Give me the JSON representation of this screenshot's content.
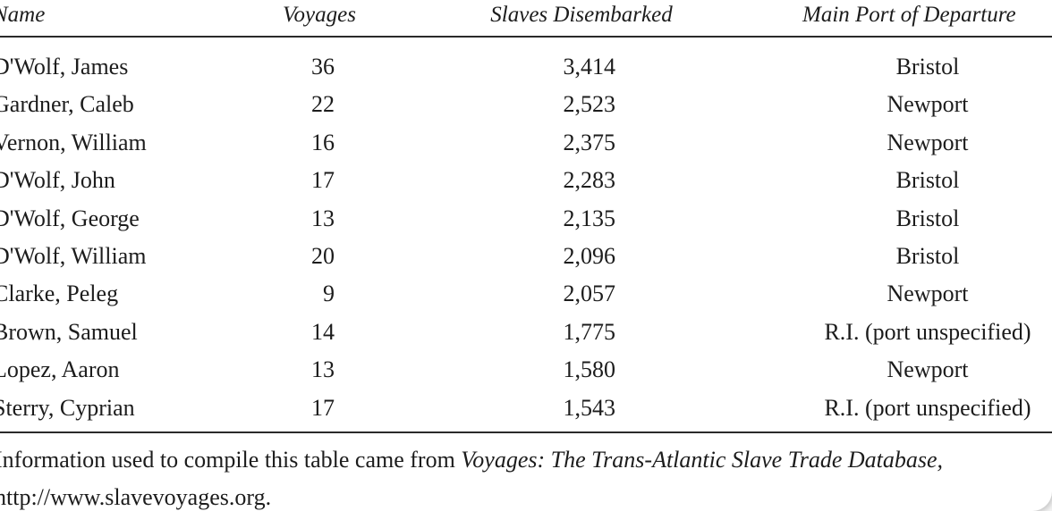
{
  "table": {
    "headers": {
      "name": "Name",
      "voyages": "Voyages",
      "slaves": "Slaves Disembarked",
      "port": "Main Port of Departure"
    },
    "rows": [
      {
        "name": "D'Wolf, James",
        "voyages": "36",
        "slaves": "3,414",
        "port": "Bristol"
      },
      {
        "name": "Gardner, Caleb",
        "voyages": "22",
        "slaves": "2,523",
        "port": "Newport"
      },
      {
        "name": "Vernon, William",
        "voyages": "16",
        "slaves": "2,375",
        "port": "Newport"
      },
      {
        "name": "D'Wolf, John",
        "voyages": "17",
        "slaves": "2,283",
        "port": "Bristol"
      },
      {
        "name": "D'Wolf, George",
        "voyages": "13",
        "slaves": "2,135",
        "port": "Bristol"
      },
      {
        "name": "D'Wolf, William",
        "voyages": "20",
        "slaves": "2,096",
        "port": "Bristol"
      },
      {
        "name": "Clarke, Peleg",
        "voyages": "9",
        "slaves": "2,057",
        "port": "Newport"
      },
      {
        "name": "Brown, Samuel",
        "voyages": "14",
        "slaves": "1,775",
        "port": "R.I. (port unspecified)"
      },
      {
        "name": "Lopez, Aaron",
        "voyages": "13",
        "slaves": "1,580",
        "port": "Newport"
      },
      {
        "name": "Sterry, Cyprian",
        "voyages": "17",
        "slaves": "1,543",
        "port": "R.I. (port unspecified)"
      }
    ]
  },
  "source_note": {
    "prefix": "Information used to compile this table came from ",
    "title": "Voyages: The Trans-Atlantic Slave Trade Database,",
    "url": "http://www.slavevoyages.org."
  }
}
